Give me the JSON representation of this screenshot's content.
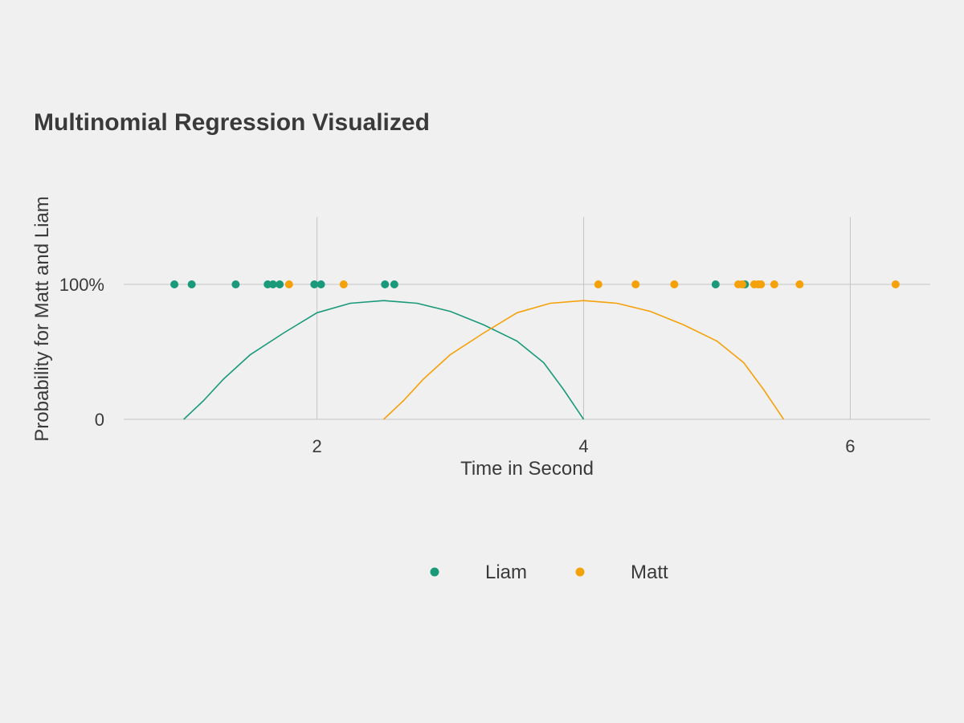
{
  "chart_data": {
    "type": "scatter",
    "title": "Multinomial Regression Visualized",
    "xlabel": "Time in Second",
    "ylabel": "Probability for Matt and Liam",
    "xlim": [
      0.55,
      6.6
    ],
    "ylim": [
      0,
      1.5
    ],
    "xticks": [
      {
        "value": 2,
        "label": "2"
      },
      {
        "value": 4,
        "label": "4"
      },
      {
        "value": 6,
        "label": "6"
      }
    ],
    "yticks": [
      {
        "value": 0,
        "label": "0"
      },
      {
        "value": 1,
        "label": "100%"
      }
    ],
    "grid": true,
    "legend_position": "bottom",
    "series": [
      {
        "name": "Liam",
        "color": "#1a9a7a",
        "points": [
          {
            "x": 0.93,
            "y": 1
          },
          {
            "x": 1.06,
            "y": 1
          },
          {
            "x": 1.39,
            "y": 1
          },
          {
            "x": 1.63,
            "y": 1
          },
          {
            "x": 1.67,
            "y": 1
          },
          {
            "x": 1.72,
            "y": 1
          },
          {
            "x": 1.98,
            "y": 1
          },
          {
            "x": 2.03,
            "y": 1
          },
          {
            "x": 2.51,
            "y": 1
          },
          {
            "x": 2.58,
            "y": 1
          },
          {
            "x": 4.99,
            "y": 1
          },
          {
            "x": 5.21,
            "y": 1
          }
        ],
        "curve": [
          {
            "x": 1.0,
            "y": 0
          },
          {
            "x": 1.15,
            "y": 0.14
          },
          {
            "x": 1.3,
            "y": 0.3
          },
          {
            "x": 1.5,
            "y": 0.48
          },
          {
            "x": 1.75,
            "y": 0.64
          },
          {
            "x": 2.0,
            "y": 0.79
          },
          {
            "x": 2.25,
            "y": 0.86
          },
          {
            "x": 2.5,
            "y": 0.88
          },
          {
            "x": 2.75,
            "y": 0.86
          },
          {
            "x": 3.0,
            "y": 0.8
          },
          {
            "x": 3.25,
            "y": 0.7
          },
          {
            "x": 3.5,
            "y": 0.58
          },
          {
            "x": 3.7,
            "y": 0.42
          },
          {
            "x": 3.85,
            "y": 0.22
          },
          {
            "x": 4.0,
            "y": 0
          }
        ]
      },
      {
        "name": "Matt",
        "color": "#f5a10a",
        "points": [
          {
            "x": 1.79,
            "y": 1
          },
          {
            "x": 2.2,
            "y": 1
          },
          {
            "x": 4.11,
            "y": 1
          },
          {
            "x": 4.39,
            "y": 1
          },
          {
            "x": 4.68,
            "y": 1
          },
          {
            "x": 5.16,
            "y": 1
          },
          {
            "x": 5.19,
            "y": 1
          },
          {
            "x": 5.28,
            "y": 1
          },
          {
            "x": 5.31,
            "y": 1
          },
          {
            "x": 5.33,
            "y": 1
          },
          {
            "x": 5.43,
            "y": 1
          },
          {
            "x": 5.62,
            "y": 1
          },
          {
            "x": 6.34,
            "y": 1
          }
        ],
        "curve": [
          {
            "x": 2.5,
            "y": 0
          },
          {
            "x": 2.65,
            "y": 0.14
          },
          {
            "x": 2.8,
            "y": 0.3
          },
          {
            "x": 3.0,
            "y": 0.48
          },
          {
            "x": 3.25,
            "y": 0.64
          },
          {
            "x": 3.5,
            "y": 0.79
          },
          {
            "x": 3.75,
            "y": 0.86
          },
          {
            "x": 4.0,
            "y": 0.88
          },
          {
            "x": 4.25,
            "y": 0.86
          },
          {
            "x": 4.5,
            "y": 0.8
          },
          {
            "x": 4.75,
            "y": 0.7
          },
          {
            "x": 5.0,
            "y": 0.58
          },
          {
            "x": 5.2,
            "y": 0.42
          },
          {
            "x": 5.35,
            "y": 0.22
          },
          {
            "x": 5.5,
            "y": 0
          }
        ]
      }
    ]
  }
}
